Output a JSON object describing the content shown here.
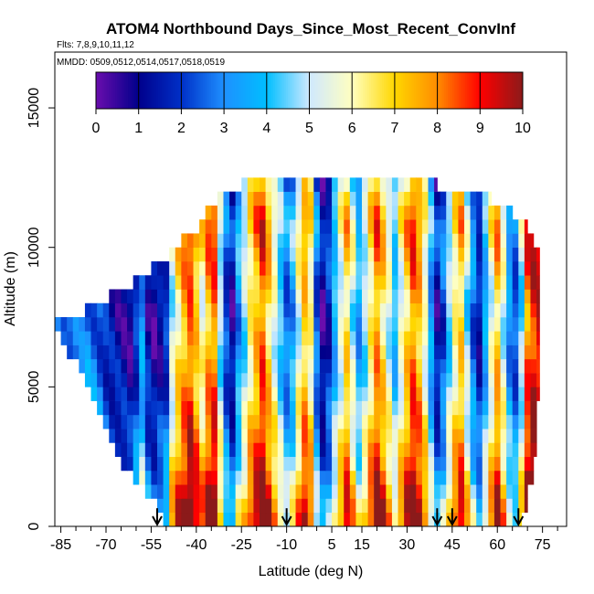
{
  "chart_data": {
    "type": "heatmap",
    "title": "ATOM4 Northbound Days_Since_Most_Recent_ConvInf",
    "subtitle": "Flts: 7,8,9,10,11,12",
    "annotation": "MMDD: 0509,0512,0514,0517,0518,0519",
    "xlabel": "Latitude (deg N)",
    "ylabel": "Altitude (m)",
    "xlim": [
      -87,
      83
    ],
    "ylim": [
      0,
      17000
    ],
    "xticks": [
      -85,
      -70,
      -55,
      -40,
      -25,
      -10,
      5,
      15,
      30,
      45,
      60,
      75
    ],
    "yticks": [
      0,
      5000,
      10000,
      15000
    ],
    "xminor_step": 5,
    "colorbar": {
      "min": 0,
      "max": 10,
      "ticks": [
        0,
        1,
        2,
        3,
        4,
        5,
        6,
        7,
        8,
        9,
        10
      ],
      "colors": [
        "#6a0dad",
        "#00008b",
        "#0030c8",
        "#1e90ff",
        "#00bfff",
        "#cfe8ff",
        "#ffffc0",
        "#ffd700",
        "#ff8c00",
        "#ff0000",
        "#8b1a1a"
      ]
    },
    "profile_markers": [
      -53,
      -10,
      40,
      45,
      67
    ],
    "value_field": "days since most recent convective influence",
    "envelope": [
      {
        "alt_lo": 0,
        "alt_hi": 500,
        "lat_min": -52,
        "lat_max": 68
      },
      {
        "alt_lo": 500,
        "alt_hi": 1000,
        "lat_min": -54,
        "lat_max": 70
      },
      {
        "alt_lo": 1000,
        "alt_hi": 1500,
        "lat_min": -58,
        "lat_max": 70
      },
      {
        "alt_lo": 1500,
        "alt_hi": 2000,
        "lat_min": -62,
        "lat_max": 72
      },
      {
        "alt_lo": 2000,
        "alt_hi": 2500,
        "lat_min": -66,
        "lat_max": 72
      },
      {
        "alt_lo": 2500,
        "alt_hi": 3000,
        "lat_min": -68,
        "lat_max": 73
      },
      {
        "alt_lo": 3000,
        "alt_hi": 3500,
        "lat_min": -70,
        "lat_max": 73
      },
      {
        "alt_lo": 3500,
        "alt_hi": 4000,
        "lat_min": -72,
        "lat_max": 73
      },
      {
        "alt_lo": 4000,
        "alt_hi": 4500,
        "lat_min": -74,
        "lat_max": 73
      },
      {
        "alt_lo": 4500,
        "alt_hi": 5000,
        "lat_min": -76,
        "lat_max": 74
      },
      {
        "alt_lo": 5000,
        "alt_hi": 5500,
        "lat_min": -78,
        "lat_max": 74
      },
      {
        "alt_lo": 5500,
        "alt_hi": 6000,
        "lat_min": -80,
        "lat_max": 74
      },
      {
        "alt_lo": 6000,
        "alt_hi": 6500,
        "lat_min": -84,
        "lat_max": 74
      },
      {
        "alt_lo": 6500,
        "alt_hi": 7000,
        "lat_min": -86,
        "lat_max": 74
      },
      {
        "alt_lo": 7000,
        "alt_hi": 7500,
        "lat_min": -87,
        "lat_max": 74
      },
      {
        "alt_lo": 7500,
        "alt_hi": 8000,
        "lat_min": -78,
        "lat_max": 74
      },
      {
        "alt_lo": 8000,
        "alt_hi": 8500,
        "lat_min": -70,
        "lat_max": 74
      },
      {
        "alt_lo": 8500,
        "alt_hi": 9000,
        "lat_min": -62,
        "lat_max": 74
      },
      {
        "alt_lo": 9000,
        "alt_hi": 9500,
        "lat_min": -55,
        "lat_max": 74
      },
      {
        "alt_lo": 9500,
        "alt_hi": 10000,
        "lat_min": -50,
        "lat_max": 74
      },
      {
        "alt_lo": 10000,
        "alt_hi": 10500,
        "lat_min": -45,
        "lat_max": 72
      },
      {
        "alt_lo": 10500,
        "alt_hi": 11000,
        "lat_min": -40,
        "lat_max": 70
      },
      {
        "alt_lo": 11000,
        "alt_hi": 11500,
        "lat_min": -37,
        "lat_max": 65
      },
      {
        "alt_lo": 11500,
        "alt_hi": 12000,
        "lat_min": -33,
        "lat_max": 58
      },
      {
        "alt_lo": 12000,
        "alt_hi": 12500,
        "lat_min": -25,
        "lat_max": 40
      }
    ],
    "columns": [
      {
        "lat": -87,
        "v": 3.6
      },
      {
        "lat": -85,
        "v": 3.4
      },
      {
        "lat": -83,
        "v": 3.2
      },
      {
        "lat": -81,
        "v": 3.0
      },
      {
        "lat": -79,
        "v": 2.8
      },
      {
        "lat": -77,
        "v": 3.2
      },
      {
        "lat": -75,
        "v": 3.0
      },
      {
        "lat": -73,
        "v": 2.6
      },
      {
        "lat": -71,
        "v": 2.0
      },
      {
        "lat": -69,
        "v": 1.6
      },
      {
        "lat": -67,
        "v": 1.4
      },
      {
        "lat": -65,
        "v": 1.2
      },
      {
        "lat": -63,
        "v": 1.0
      },
      {
        "lat": -61,
        "v": 2.0
      },
      {
        "lat": -59,
        "v": 3.4
      },
      {
        "lat": -57,
        "v": 1.5
      },
      {
        "lat": -55,
        "v": 0.9
      },
      {
        "lat": -53,
        "v": 1.3
      },
      {
        "lat": -51,
        "v": 2.0
      },
      {
        "lat": -49,
        "v": 5.2
      },
      {
        "lat": -47,
        "v": 6.6
      },
      {
        "lat": -45,
        "v": 7.6
      },
      {
        "lat": -43,
        "v": 8.4
      },
      {
        "lat": -41,
        "v": 7.2
      },
      {
        "lat": -39,
        "v": 6.0
      },
      {
        "lat": -37,
        "v": 7.6
      },
      {
        "lat": -35,
        "v": 8.2
      },
      {
        "lat": -33,
        "v": 4.8
      },
      {
        "lat": -31,
        "v": 2.2
      },
      {
        "lat": -29,
        "v": 1.2
      },
      {
        "lat": -27,
        "v": 3.4
      },
      {
        "lat": -25,
        "v": 4.8
      },
      {
        "lat": -23,
        "v": 6.4
      },
      {
        "lat": -21,
        "v": 7.4
      },
      {
        "lat": -19,
        "v": 8.4
      },
      {
        "lat": -17,
        "v": 7.0
      },
      {
        "lat": -15,
        "v": 5.6
      },
      {
        "lat": -13,
        "v": 4.2
      },
      {
        "lat": -11,
        "v": 2.8
      },
      {
        "lat": -9,
        "v": 3.6
      },
      {
        "lat": -7,
        "v": 5.6
      },
      {
        "lat": -5,
        "v": 7.2
      },
      {
        "lat": -3,
        "v": 6.2
      },
      {
        "lat": -1,
        "v": 2.6
      },
      {
        "lat": 1,
        "v": 0.9
      },
      {
        "lat": 3,
        "v": 1.8
      },
      {
        "lat": 5,
        "v": 3.8
      },
      {
        "lat": 7,
        "v": 5.4
      },
      {
        "lat": 9,
        "v": 6.8
      },
      {
        "lat": 11,
        "v": 5.2
      },
      {
        "lat": 13,
        "v": 3.6
      },
      {
        "lat": 15,
        "v": 4.8
      },
      {
        "lat": 17,
        "v": 6.4
      },
      {
        "lat": 19,
        "v": 7.8
      },
      {
        "lat": 21,
        "v": 6.8
      },
      {
        "lat": 23,
        "v": 5.4
      },
      {
        "lat": 25,
        "v": 4.0
      },
      {
        "lat": 27,
        "v": 5.6
      },
      {
        "lat": 29,
        "v": 7.0
      },
      {
        "lat": 31,
        "v": 8.2
      },
      {
        "lat": 33,
        "v": 7.4
      },
      {
        "lat": 35,
        "v": 5.8
      },
      {
        "lat": 37,
        "v": 3.4
      },
      {
        "lat": 39,
        "v": 1.4
      },
      {
        "lat": 41,
        "v": 2.4
      },
      {
        "lat": 43,
        "v": 4.6
      },
      {
        "lat": 45,
        "v": 6.2
      },
      {
        "lat": 47,
        "v": 7.0
      },
      {
        "lat": 49,
        "v": 4.8
      },
      {
        "lat": 51,
        "v": 2.8
      },
      {
        "lat": 53,
        "v": 1.6
      },
      {
        "lat": 55,
        "v": 3.6
      },
      {
        "lat": 57,
        "v": 5.6
      },
      {
        "lat": 59,
        "v": 7.2
      },
      {
        "lat": 61,
        "v": 5.4
      },
      {
        "lat": 63,
        "v": 3.2
      },
      {
        "lat": 65,
        "v": 2.4
      },
      {
        "lat": 67,
        "v": 4.6
      },
      {
        "lat": 69,
        "v": 8.2
      },
      {
        "lat": 71,
        "v": 9.1
      },
      {
        "lat": 73,
        "v": 9.4
      }
    ],
    "layers": [
      {
        "alt_lo": 0,
        "alt_hi": 500,
        "shift": 2.6
      },
      {
        "alt_lo": 500,
        "alt_hi": 1000,
        "shift": 2.4
      },
      {
        "alt_lo": 1000,
        "alt_hi": 1500,
        "shift": 2.0
      },
      {
        "alt_lo": 1500,
        "alt_hi": 2000,
        "shift": 1.6
      },
      {
        "alt_lo": 2000,
        "alt_hi": 2500,
        "shift": 1.2
      },
      {
        "alt_lo": 2500,
        "alt_hi": 3000,
        "shift": 1.0
      },
      {
        "alt_lo": 3000,
        "alt_hi": 3500,
        "shift": 0.8
      },
      {
        "alt_lo": 3500,
        "alt_hi": 4000,
        "shift": 0.6
      },
      {
        "alt_lo": 4000,
        "alt_hi": 4500,
        "shift": 0.4
      },
      {
        "alt_lo": 4500,
        "alt_hi": 5000,
        "shift": 0.2
      },
      {
        "alt_lo": 5000,
        "alt_hi": 5500,
        "shift": 0.0
      },
      {
        "alt_lo": 5500,
        "alt_hi": 6000,
        "shift": 0.0
      },
      {
        "alt_lo": 6000,
        "alt_hi": 6500,
        "shift": -0.2
      },
      {
        "alt_lo": 6500,
        "alt_hi": 7000,
        "shift": -0.2
      },
      {
        "alt_lo": 7000,
        "alt_hi": 7500,
        "shift": -0.4
      },
      {
        "alt_lo": 7500,
        "alt_hi": 8000,
        "shift": -0.4
      },
      {
        "alt_lo": 8000,
        "alt_hi": 8500,
        "shift": -0.2
      },
      {
        "alt_lo": 8500,
        "alt_hi": 9000,
        "shift": 0.0
      },
      {
        "alt_lo": 9000,
        "alt_hi": 9500,
        "shift": 0.2
      },
      {
        "alt_lo": 9500,
        "alt_hi": 10000,
        "shift": 0.4
      },
      {
        "alt_lo": 10000,
        "alt_hi": 10500,
        "shift": 0.6
      },
      {
        "alt_lo": 10500,
        "alt_hi": 11000,
        "shift": 0.8
      },
      {
        "alt_lo": 11000,
        "alt_hi": 11500,
        "shift": 0.6
      },
      {
        "alt_lo": 11500,
        "alt_hi": 12000,
        "shift": 0.2
      },
      {
        "alt_lo": 12000,
        "alt_hi": 12500,
        "shift": -0.4
      }
    ]
  }
}
